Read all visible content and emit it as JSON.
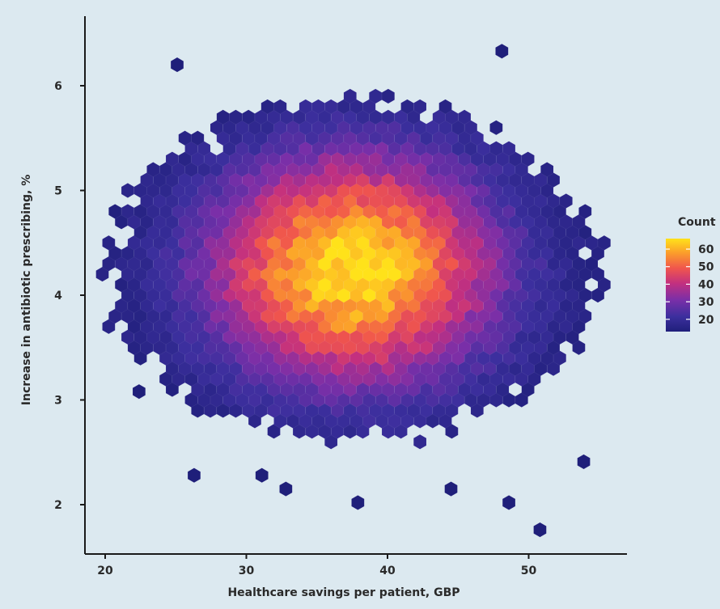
{
  "chart_data": {
    "type": "heatmap",
    "subtype": "hexbin",
    "xlabel": "Healthcare savings per patient, GBP",
    "ylabel": "Increase in antibiotic prescribing, %",
    "xlim": [
      18.5,
      56.5
    ],
    "ylim": [
      1.55,
      6.65
    ],
    "x_ticks": [
      20,
      30,
      40,
      50
    ],
    "y_ticks": [
      2,
      3,
      4,
      5,
      6
    ],
    "grid": false,
    "background": "#dce9f0",
    "legend": {
      "title": "Count",
      "placement": "right",
      "ticks": [
        20,
        30,
        40,
        50,
        60
      ],
      "range": [
        13,
        66
      ],
      "colors": [
        "#1f1f7a",
        "#3c2f9e",
        "#7a2fa8",
        "#c3307f",
        "#f0554d",
        "#fb9b2c",
        "#ffe21a"
      ]
    },
    "peak": {
      "x": 37.5,
      "y": 4.25,
      "count": 66
    },
    "min_count": 13,
    "hex_step_x": 0.9,
    "hex_step_y": 0.1,
    "center_spread": {
      "sx": 7.0,
      "sy": 0.75
    },
    "outlier_cells": [
      {
        "x": 25.1,
        "y": 6.2
      },
      {
        "x": 48.1,
        "y": 6.33
      },
      {
        "x": 26.3,
        "y": 2.28
      },
      {
        "x": 31.1,
        "y": 2.28
      },
      {
        "x": 32.8,
        "y": 2.15
      },
      {
        "x": 37.9,
        "y": 2.02
      },
      {
        "x": 44.5,
        "y": 2.15
      },
      {
        "x": 48.6,
        "y": 2.02
      },
      {
        "x": 50.8,
        "y": 1.76
      },
      {
        "x": 53.9,
        "y": 2.41
      },
      {
        "x": 22.4,
        "y": 3.08
      }
    ],
    "holes": [
      {
        "x": 27.6,
        "y": 5.44
      },
      {
        "x": 39.6,
        "y": 5.82
      },
      {
        "x": 46.6,
        "y": 5.7
      },
      {
        "x": 52.6,
        "y": 5.05
      },
      {
        "x": 39.1,
        "y": 2.68
      },
      {
        "x": 42.6,
        "y": 2.68
      }
    ]
  }
}
